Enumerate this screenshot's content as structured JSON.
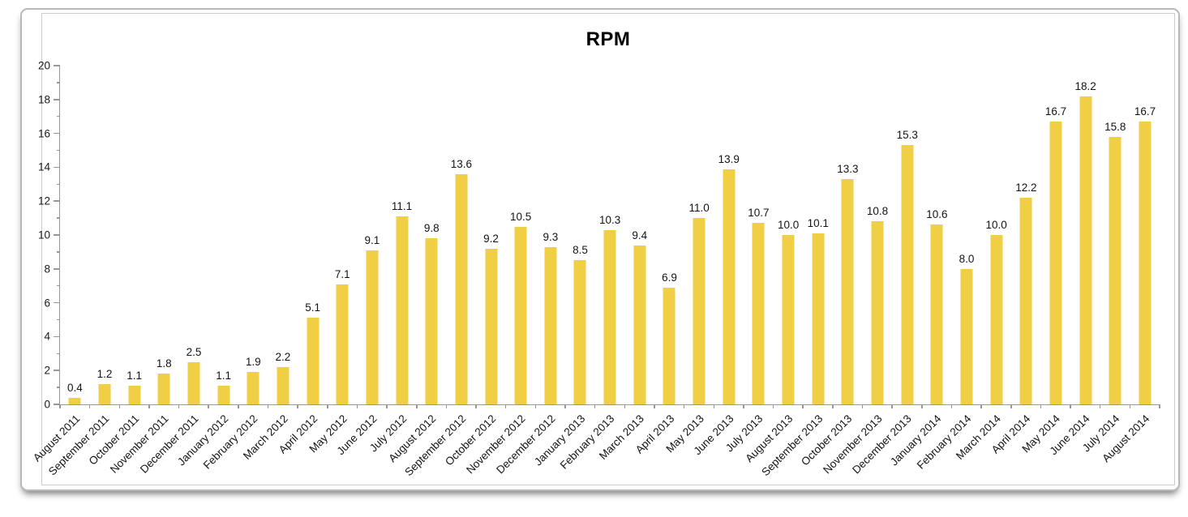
{
  "chart_data": {
    "type": "bar",
    "title": "RPM",
    "categories": [
      "August 2011",
      "September 2011",
      "October 2011",
      "November 2011",
      "December 2011",
      "January 2012",
      "February 2012",
      "March 2012",
      "April 2012",
      "May 2012",
      "June 2012",
      "July 2012",
      "August 2012",
      "September 2012",
      "October 2012",
      "November 2012",
      "December 2012",
      "January 2013",
      "February 2013",
      "March 2013",
      "April 2013",
      "May 2013",
      "June 2013",
      "July 2013",
      "August 2013",
      "September 2013",
      "October 2013",
      "November 2013",
      "December 2013",
      "January 2014",
      "February 2014",
      "March 2014",
      "April 2014",
      "May 2014",
      "June 2014",
      "July 2014",
      "August 2014"
    ],
    "values": [
      0.4,
      1.2,
      1.1,
      1.8,
      2.5,
      1.1,
      1.9,
      2.2,
      5.1,
      7.1,
      9.1,
      11.1,
      9.8,
      13.6,
      9.2,
      10.5,
      9.3,
      8.5,
      10.3,
      9.4,
      6.9,
      11.0,
      13.9,
      10.7,
      10.0,
      10.1,
      13.3,
      10.8,
      15.3,
      10.6,
      8.0,
      10.0,
      12.2,
      16.7,
      18.2,
      15.8,
      16.7
    ],
    "value_label_decimals": 1,
    "xlabel": "",
    "ylabel": "",
    "ylim": [
      0,
      20
    ],
    "ytick_step": 2,
    "x_label_rotation": -45,
    "grid": false,
    "legend": false,
    "bar_color": "#F0CF45",
    "axis_color": "#979797",
    "text_color": "#141414"
  }
}
